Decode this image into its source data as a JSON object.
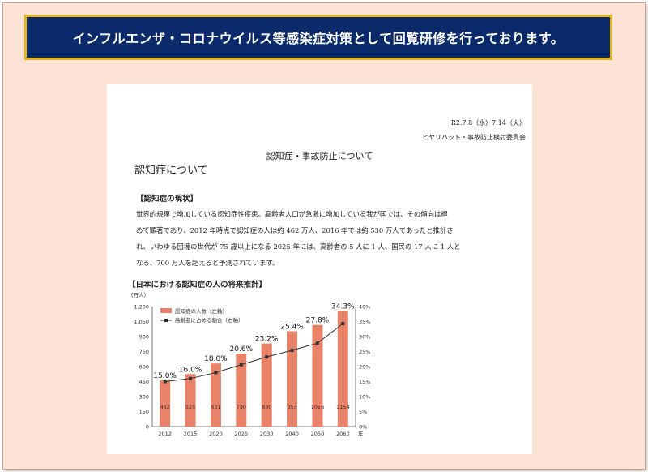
{
  "banner": {
    "text": "インフルエンザ・コロナウイルス等感染症対策として回覧研修を行っております。"
  },
  "document": {
    "date": "R2.7.8（水）7.14（火）",
    "committee": "ヒヤリハット・事故防止検討委員会",
    "center_title": "認知症・事故防止について",
    "heading": "認知症について",
    "section_title": "【認知症の現状】",
    "paragraph_lines": [
      "世界的規模で増加している認知症性疾患。高齢者人口が急激に増加している我が国では、その傾向は極",
      "めて顕著であり、2012 年時点で認知症の人は約 462 万人、2016 年では約 530 万人であったと推計さ",
      "れ、いわゆる団塊の世代が 75 歳以上になる 2025 年には、高齢者の 5 人に 1 人、国民の 17 人に 1 人と",
      "なる、700 万人を超えると予測されています。"
    ],
    "chart_title": "【日本における認知症の人の将来推計】",
    "unit_label": "（万人）"
  },
  "chart_data": {
    "type": "bar",
    "categories": [
      "2012",
      "2015",
      "2020",
      "2025",
      "2030",
      "2040",
      "2050",
      "2060"
    ],
    "x_suffix": "年",
    "series": [
      {
        "name": "認知症の人数（左軸）",
        "type": "bar",
        "axis": "left",
        "color": "#e8836a",
        "values": [
          462,
          525,
          631,
          730,
          830,
          953,
          1016,
          1154
        ]
      },
      {
        "name": "高齢者に占める割合（右軸）",
        "type": "line",
        "axis": "right",
        "color": "#333333",
        "values": [
          15.0,
          16.0,
          18.0,
          20.6,
          23.2,
          25.4,
          27.8,
          34.3
        ]
      }
    ],
    "left_ticks": [
      "0",
      "150",
      "300",
      "450",
      "600",
      "750",
      "900",
      "1,050",
      "1,200"
    ],
    "right_ticks": [
      "0%",
      "5%",
      "10%",
      "15%",
      "20%",
      "25%",
      "30%",
      "35%",
      "40%"
    ],
    "ylim_left": [
      0,
      1200
    ],
    "ylim_right": [
      0,
      40
    ],
    "legend_position": "top-left"
  }
}
